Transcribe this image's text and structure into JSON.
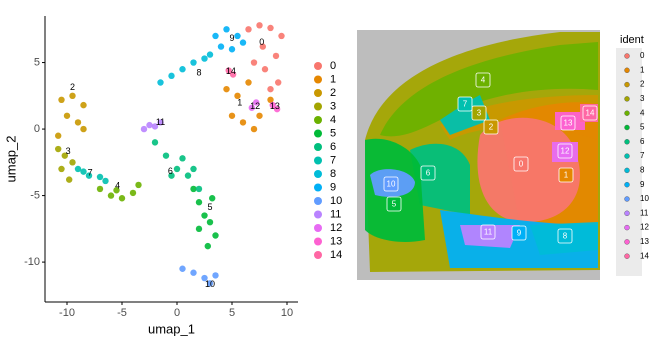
{
  "chart_data": [
    {
      "type": "scatter",
      "xlabel": "umap_1",
      "ylabel": "umap_2",
      "xlim": [
        -12,
        11
      ],
      "ylim": [
        -13,
        8.5
      ],
      "xticks": [
        -10,
        -5,
        0,
        5,
        10
      ],
      "yticks": [
        -10,
        -5,
        0,
        5
      ],
      "series": [
        {
          "name": "0",
          "color": "#F8766D",
          "x": [
            6.5,
            7.5,
            8.5,
            9.5,
            7,
            8,
            9,
            8.5,
            7.8,
            9.2
          ],
          "y": [
            7.5,
            7.8,
            7.6,
            7,
            5,
            4.5,
            5.5,
            3,
            6.2,
            3.5
          ]
        },
        {
          "name": "1",
          "color": "#E58700",
          "x": [
            4.5,
            5.5,
            6.5,
            7.5,
            5,
            6,
            7,
            8.5
          ],
          "y": [
            3,
            2.5,
            3.5,
            1,
            1,
            0.5,
            0,
            2.2
          ]
        },
        {
          "name": "2",
          "color": "#C99800",
          "x": [
            -10.5,
            -9.5,
            -8.5,
            -10,
            -9,
            -10.8,
            -8.5
          ],
          "y": [
            2.2,
            2.5,
            1.8,
            1,
            0.5,
            -0.5,
            0
          ]
        },
        {
          "name": "3",
          "color": "#A3A500",
          "x": [
            -10.8,
            -10.2,
            -9.5,
            -10.5,
            -9.8
          ],
          "y": [
            -1.5,
            -2,
            -2.5,
            -3,
            -3.8
          ]
        },
        {
          "name": "4",
          "color": "#6BB100",
          "x": [
            -7,
            -6,
            -5,
            -4,
            -3.5,
            -5.5
          ],
          "y": [
            -4.5,
            -5,
            -5.2,
            -4.8,
            -4.2,
            -4.6
          ]
        },
        {
          "name": "5",
          "color": "#00BA38",
          "x": [
            1.5,
            2,
            2.5,
            3,
            3.5,
            2.8,
            3.2,
            2
          ],
          "y": [
            -4.5,
            -5.5,
            -6.5,
            -7,
            -8,
            -8.8,
            -5.2,
            -7.5
          ]
        },
        {
          "name": "6",
          "color": "#00BF7D",
          "x": [
            -2,
            -1,
            0,
            1,
            2,
            -0.5,
            1.5,
            0.5
          ],
          "y": [
            -1,
            -2,
            -3,
            -3.5,
            -4.5,
            -3.5,
            -3,
            -2.2
          ]
        },
        {
          "name": "7",
          "color": "#00C0AF",
          "x": [
            -9,
            -8.5,
            -8,
            -7,
            -6.5
          ],
          "y": [
            -3,
            -3.2,
            -3.5,
            -3.6,
            -3.9
          ]
        },
        {
          "name": "8",
          "color": "#00BCD8",
          "x": [
            -1.5,
            -0.5,
            0.5,
            1.5,
            2.5,
            3
          ],
          "y": [
            3.5,
            4,
            4.5,
            5,
            5.3,
            5.6
          ]
        },
        {
          "name": "9",
          "color": "#00B0F6",
          "x": [
            3.5,
            4.5,
            5.5,
            6,
            4,
            5
          ],
          "y": [
            7,
            7.5,
            7,
            6.5,
            6.2,
            6
          ]
        },
        {
          "name": "10",
          "color": "#619CFF",
          "x": [
            0.5,
            1.5,
            2.5,
            3.5,
            3
          ],
          "y": [
            -10.5,
            -10.8,
            -11.2,
            -11,
            -11.6
          ]
        },
        {
          "name": "11",
          "color": "#B983FF",
          "x": [
            -3,
            -2.5,
            -2,
            -1.5
          ],
          "y": [
            0,
            0.3,
            0.2,
            0.5
          ]
        },
        {
          "name": "12",
          "color": "#E76BF3",
          "x": [
            6.8,
            7.2
          ],
          "y": [
            1.6,
            2
          ]
        },
        {
          "name": "13",
          "color": "#FD61D1",
          "x": [
            8.7,
            9.1
          ],
          "y": [
            1.8,
            1.5
          ]
        },
        {
          "name": "14",
          "color": "#FF67A4",
          "x": [
            4.7,
            5.1
          ],
          "y": [
            4.4,
            4.1
          ]
        }
      ],
      "cluster_labels": [
        {
          "text": "0",
          "x": 7.7,
          "y": 6.5
        },
        {
          "text": "1",
          "x": 5.7,
          "y": 1.95
        },
        {
          "text": "2",
          "x": -9.5,
          "y": 3.1
        },
        {
          "text": "3",
          "x": -9.9,
          "y": -1.7
        },
        {
          "text": "4",
          "x": -5.4,
          "y": -4.3
        },
        {
          "text": "5",
          "x": 3,
          "y": -5.9
        },
        {
          "text": "6",
          "x": -0.6,
          "y": -3.2
        },
        {
          "text": "7",
          "x": -7.9,
          "y": -3.3
        },
        {
          "text": "8",
          "x": 2,
          "y": 4.2
        },
        {
          "text": "9",
          "x": 5,
          "y": 6.8
        },
        {
          "text": "10",
          "x": 3,
          "y": -11.7
        },
        {
          "text": "11",
          "x": -1.5,
          "y": 0.5
        },
        {
          "text": "12",
          "x": 7.1,
          "y": 1.7
        },
        {
          "text": "13",
          "x": 8.9,
          "y": 1.7
        },
        {
          "text": "14",
          "x": 4.9,
          "y": 4.3
        }
      ]
    },
    {
      "type": "spatial",
      "legend_title": "ident",
      "series": [
        {
          "name": "0",
          "color": "#F8766D"
        },
        {
          "name": "1",
          "color": "#E58700"
        },
        {
          "name": "2",
          "color": "#C99800"
        },
        {
          "name": "3",
          "color": "#A3A500"
        },
        {
          "name": "4",
          "color": "#6BB100"
        },
        {
          "name": "5",
          "color": "#00BA38"
        },
        {
          "name": "6",
          "color": "#00BF7D"
        },
        {
          "name": "7",
          "color": "#00C0AF"
        },
        {
          "name": "8",
          "color": "#00BCD8"
        },
        {
          "name": "9",
          "color": "#00B0F6"
        },
        {
          "name": "10",
          "color": "#619CFF"
        },
        {
          "name": "11",
          "color": "#B983FF"
        },
        {
          "name": "12",
          "color": "#E76BF3"
        },
        {
          "name": "13",
          "color": "#FD61D1"
        },
        {
          "name": "14",
          "color": "#FF67A4"
        }
      ]
    }
  ]
}
